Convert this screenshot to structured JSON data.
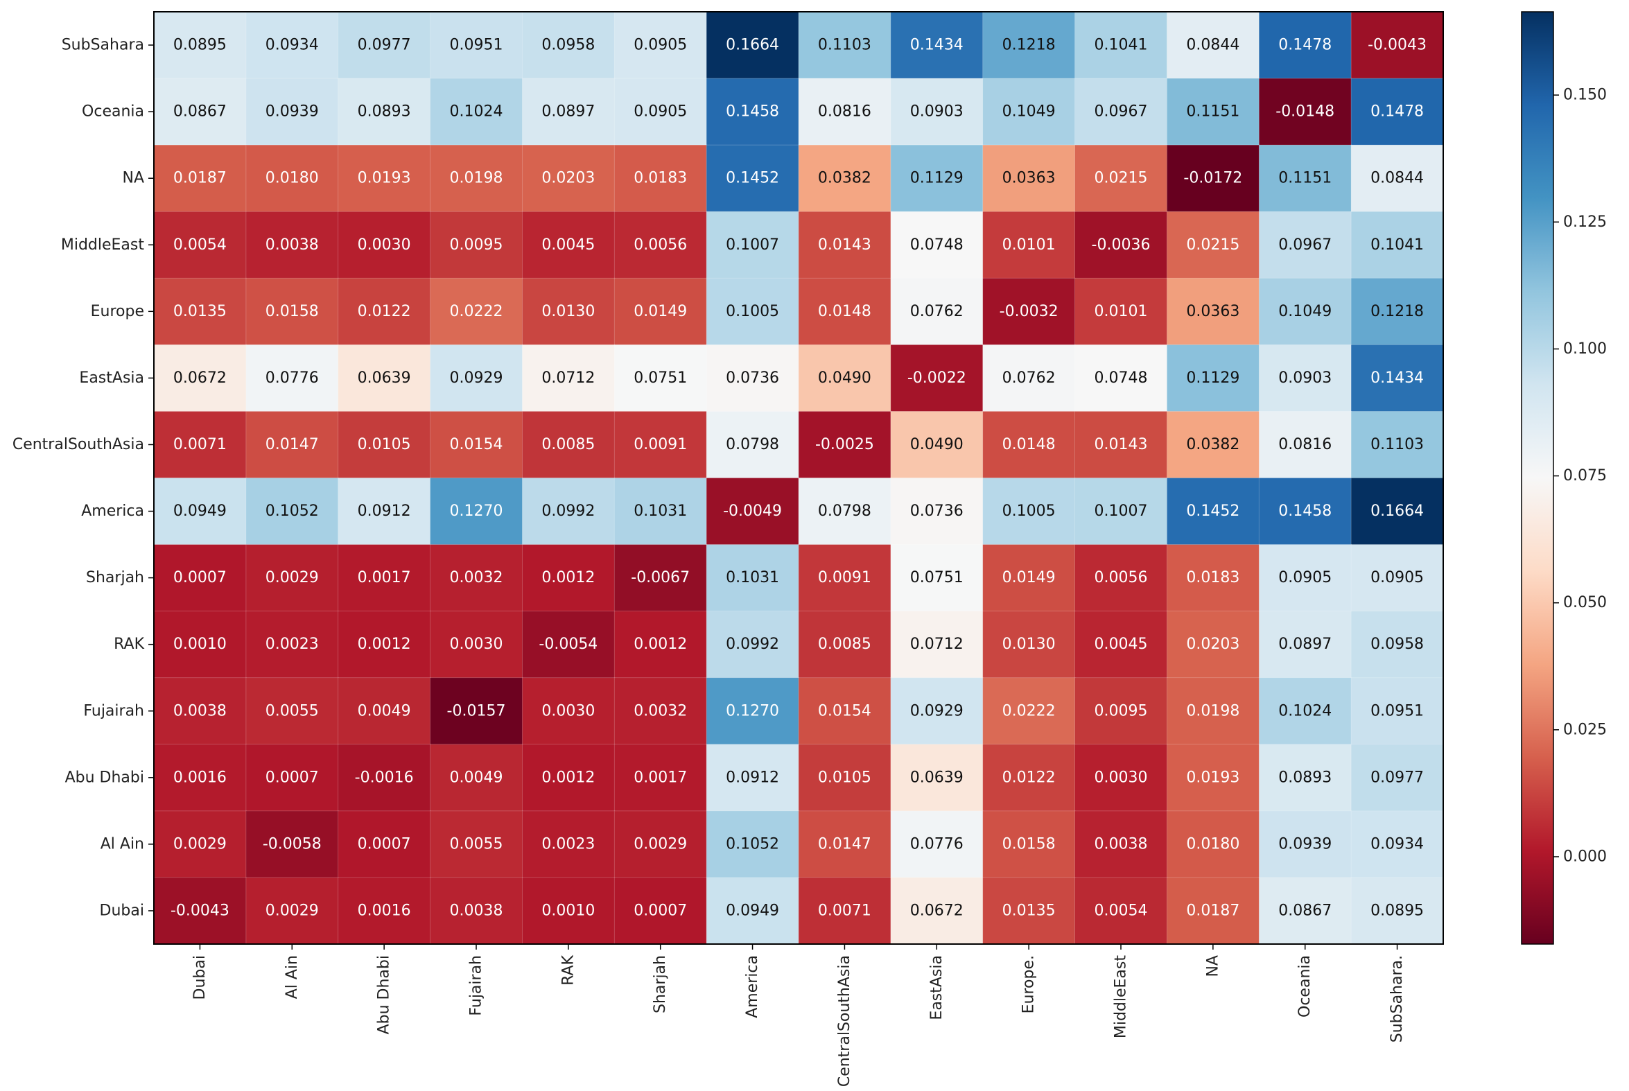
{
  "chart_data": {
    "type": "heatmap",
    "title": "",
    "xlabel": "",
    "ylabel": "",
    "x_categories": [
      "Dubai",
      "Al Ain",
      "Abu Dhabi",
      "Fujairah",
      "RAK",
      "Sharjah",
      "America",
      "CentralSouthAsia",
      "EastAsia",
      "Europe.",
      "MiddleEast",
      "NA",
      "Oceania",
      "SubSahara."
    ],
    "y_categories": [
      "SubSahara",
      "Oceania",
      "NA",
      "MiddleEast",
      "Europe",
      "EastAsia",
      "CentralSouthAsia",
      "America",
      "Sharjah",
      "RAK",
      "Fujairah",
      "Abu Dhabi",
      "Al Ain",
      "Dubai"
    ],
    "values": [
      [
        0.0895,
        0.0934,
        0.0977,
        0.0951,
        0.0958,
        0.0905,
        0.1664,
        0.1103,
        0.1434,
        0.1218,
        0.1041,
        0.0844,
        0.1478,
        -0.0043
      ],
      [
        0.0867,
        0.0939,
        0.0893,
        0.1024,
        0.0897,
        0.0905,
        0.1458,
        0.0816,
        0.0903,
        0.1049,
        0.0967,
        0.1151,
        -0.0148,
        0.1478
      ],
      [
        0.0187,
        0.018,
        0.0193,
        0.0198,
        0.0203,
        0.0183,
        0.1452,
        0.0382,
        0.1129,
        0.0363,
        0.0215,
        -0.0172,
        0.1151,
        0.0844
      ],
      [
        0.0054,
        0.0038,
        0.003,
        0.0095,
        0.0045,
        0.0056,
        0.1007,
        0.0143,
        0.0748,
        0.0101,
        -0.0036,
        0.0215,
        0.0967,
        0.1041
      ],
      [
        0.0135,
        0.0158,
        0.0122,
        0.0222,
        0.013,
        0.0149,
        0.1005,
        0.0148,
        0.0762,
        -0.0032,
        0.0101,
        0.0363,
        0.1049,
        0.1218
      ],
      [
        0.0672,
        0.0776,
        0.0639,
        0.0929,
        0.0712,
        0.0751,
        0.0736,
        0.049,
        -0.0022,
        0.0762,
        0.0748,
        0.1129,
        0.0903,
        0.1434
      ],
      [
        0.0071,
        0.0147,
        0.0105,
        0.0154,
        0.0085,
        0.0091,
        0.0798,
        -0.0025,
        0.049,
        0.0148,
        0.0143,
        0.0382,
        0.0816,
        0.1103
      ],
      [
        0.0949,
        0.1052,
        0.0912,
        0.127,
        0.0992,
        0.1031,
        -0.0049,
        0.0798,
        0.0736,
        0.1005,
        0.1007,
        0.1452,
        0.1458,
        0.1664
      ],
      [
        0.0007,
        0.0029,
        0.0017,
        0.0032,
        0.0012,
        -0.0067,
        0.1031,
        0.0091,
        0.0751,
        0.0149,
        0.0056,
        0.0183,
        0.0905,
        0.0905
      ],
      [
        0.001,
        0.0023,
        0.0012,
        0.003,
        -0.0054,
        0.0012,
        0.0992,
        0.0085,
        0.0712,
        0.013,
        0.0045,
        0.0203,
        0.0897,
        0.0958
      ],
      [
        0.0038,
        0.0055,
        0.0049,
        -0.0157,
        0.003,
        0.0032,
        0.127,
        0.0154,
        0.0929,
        0.0222,
        0.0095,
        0.0198,
        0.1024,
        0.0951
      ],
      [
        0.0016,
        0.0007,
        -0.0016,
        0.0049,
        0.0012,
        0.0017,
        0.0912,
        0.0105,
        0.0639,
        0.0122,
        0.003,
        0.0193,
        0.0893,
        0.0977
      ],
      [
        0.0029,
        -0.0058,
        0.0007,
        0.0055,
        0.0023,
        0.0029,
        0.1052,
        0.0147,
        0.0776,
        0.0158,
        0.0038,
        0.018,
        0.0939,
        0.0934
      ],
      [
        -0.0043,
        0.0029,
        0.0016,
        0.0038,
        0.001,
        0.0007,
        0.0949,
        0.0071,
        0.0672,
        0.0135,
        0.0054,
        0.0187,
        0.0867,
        0.0895
      ]
    ],
    "value_labels": [
      [
        "0.0895",
        "0.0934",
        "0.0977",
        "0.0951",
        "0.0958",
        "0.0905",
        "0.1664",
        "0.1103",
        "0.1434",
        "0.1218",
        "0.1041",
        "0.0844",
        "0.1478",
        "-0.0043"
      ],
      [
        "0.0867",
        "0.0939",
        "0.0893",
        "0.1024",
        "0.0897",
        "0.0905",
        "0.1458",
        "0.0816",
        "0.0903",
        "0.1049",
        "0.0967",
        "0.1151",
        "-0.0148",
        "0.1478"
      ],
      [
        "0.0187",
        "0.0180",
        "0.0193",
        "0.0198",
        "0.0203",
        "0.0183",
        "0.1452",
        "0.0382",
        "0.1129",
        "0.0363",
        "0.0215",
        "-0.0172",
        "0.1151",
        "0.0844"
      ],
      [
        "0.0054",
        "0.0038",
        "0.0030",
        "0.0095",
        "0.0045",
        "0.0056",
        "0.1007",
        "0.0143",
        "0.0748",
        "0.0101",
        "-0.0036",
        "0.0215",
        "0.0967",
        "0.1041"
      ],
      [
        "0.0135",
        "0.0158",
        "0.0122",
        "0.0222",
        "0.0130",
        "0.0149",
        "0.1005",
        "0.0148",
        "0.0762",
        "-0.0032",
        "0.0101",
        "0.0363",
        "0.1049",
        "0.1218"
      ],
      [
        "0.0672",
        "0.0776",
        "0.0639",
        "0.0929",
        "0.0712",
        "0.0751",
        "0.0736",
        "0.0490",
        "-0.0022",
        "0.0762",
        "0.0748",
        "0.1129",
        "0.0903",
        "0.1434"
      ],
      [
        "0.0071",
        "0.0147",
        "0.0105",
        "0.0154",
        "0.0085",
        "0.0091",
        "0.0798",
        "-0.0025",
        "0.0490",
        "0.0148",
        "0.0143",
        "0.0382",
        "0.0816",
        "0.1103"
      ],
      [
        "0.0949",
        "0.1052",
        "0.0912",
        "0.1270",
        "0.0992",
        "0.1031",
        "-0.0049",
        "0.0798",
        "0.0736",
        "0.1005",
        "0.1007",
        "0.1452",
        "0.1458",
        "0.1664"
      ],
      [
        "0.0007",
        "0.0029",
        "0.0017",
        "0.0032",
        "0.0012",
        "-0.0067",
        "0.1031",
        "0.0091",
        "0.0751",
        "0.0149",
        "0.0056",
        "0.0183",
        "0.0905",
        "0.0905"
      ],
      [
        "0.0010",
        "0.0023",
        "0.0012",
        "0.0030",
        "-0.0054",
        "0.0012",
        "0.0992",
        "0.0085",
        "0.0712",
        "0.0130",
        "0.0045",
        "0.0203",
        "0.0897",
        "0.0958"
      ],
      [
        "0.0038",
        "0.0055",
        "0.0049",
        "-0.0157",
        "0.0030",
        "0.0032",
        "0.1270",
        "0.0154",
        "0.0929",
        "0.0222",
        "0.0095",
        "0.0198",
        "0.1024",
        "0.0951"
      ],
      [
        "0.0016",
        "0.0007",
        "-0.0016",
        "0.0049",
        "0.0012",
        "0.0017",
        "0.0912",
        "0.0105",
        "0.0639",
        "0.0122",
        "0.0030",
        "0.0193",
        "0.0893",
        "0.0977"
      ],
      [
        "0.0029",
        "-0.0058",
        "0.0007",
        "0.0055",
        "0.0023",
        "0.0029",
        "0.1052",
        "0.0147",
        "0.0776",
        "0.0158",
        "0.0038",
        "0.0180",
        "0.0939",
        "0.0934"
      ],
      [
        "-0.0043",
        "0.0029",
        "0.0016",
        "0.0038",
        "0.0010",
        "0.0007",
        "0.0949",
        "0.0071",
        "0.0672",
        "0.0135",
        "0.0054",
        "0.0187",
        "0.0867",
        "0.0895"
      ]
    ],
    "colorbar": {
      "colormap": "RdBu",
      "range": [
        -0.0172,
        0.1664
      ],
      "ticks": [
        0.0,
        0.025,
        0.05,
        0.075,
        0.1,
        0.125,
        0.15
      ],
      "tick_labels": [
        "0.000",
        "0.025",
        "0.050",
        "0.075",
        "0.100",
        "0.125",
        "0.150"
      ]
    },
    "grid": false,
    "legend": "right (colorbar)"
  }
}
